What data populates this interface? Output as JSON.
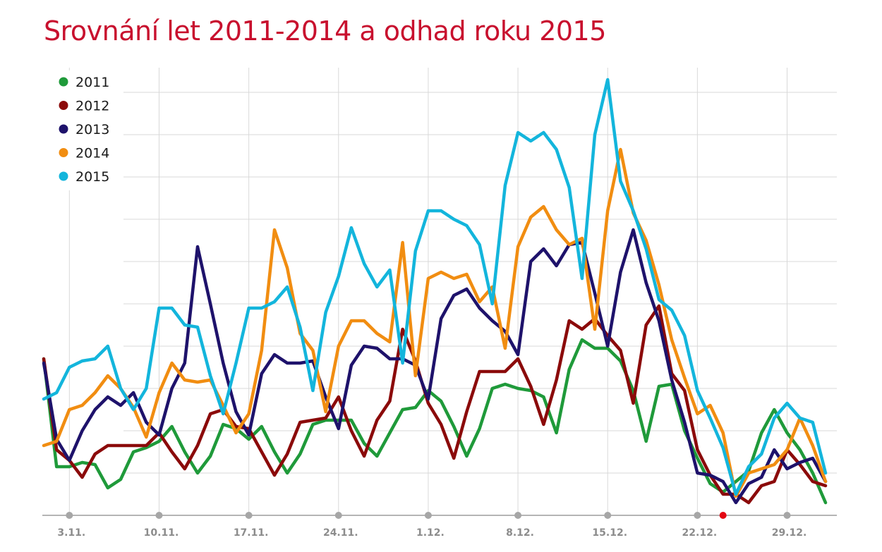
{
  "chart_data": {
    "type": "line",
    "title": "Srovnání let 2011-2014 a odhad roku 2015",
    "title_color": "#c8102e",
    "legend_position": "top-left",
    "grid": "horizontal-and-vertical",
    "day_range": [
      1,
      62
    ],
    "ylim": [
      0,
      10
    ],
    "ticks": [
      {
        "day": 3,
        "label": "3.11."
      },
      {
        "day": 10,
        "label": "10.11."
      },
      {
        "day": 17,
        "label": "17.11."
      },
      {
        "day": 24,
        "label": "24.11."
      },
      {
        "day": 31,
        "label": "1.12."
      },
      {
        "day": 38,
        "label": "8.12."
      },
      {
        "day": 45,
        "label": "15.12."
      },
      {
        "day": 52,
        "label": "22.12."
      },
      {
        "day": 59,
        "label": "29.12."
      }
    ],
    "highlight_day": 54,
    "highlight_color": "#e30613",
    "series": [
      {
        "name": "2011",
        "color": "#1f9a3a",
        "values": [
          3.7,
          1.15,
          1.15,
          1.25,
          1.2,
          0.65,
          0.85,
          1.5,
          1.6,
          1.75,
          2.1,
          1.5,
          1.0,
          1.4,
          2.15,
          2.05,
          1.8,
          2.1,
          1.5,
          1.0,
          1.45,
          2.15,
          2.25,
          2.25,
          2.25,
          1.7,
          1.4,
          1.95,
          2.5,
          2.55,
          2.95,
          2.7,
          2.1,
          1.4,
          2.05,
          3.0,
          3.1,
          3.0,
          2.95,
          2.8,
          1.95,
          3.45,
          4.15,
          3.95,
          3.95,
          3.65,
          2.95,
          1.75,
          3.05,
          3.1,
          2.0,
          1.35,
          0.75,
          0.55,
          0.8,
          1.05,
          1.95,
          2.5,
          1.95,
          1.55,
          1.0,
          0.3
        ]
      },
      {
        "name": "2012",
        "color": "#8b0a0a",
        "values": [
          3.7,
          1.55,
          1.3,
          0.9,
          1.45,
          1.65,
          1.65,
          1.65,
          1.65,
          1.95,
          1.5,
          1.1,
          1.65,
          2.4,
          2.5,
          2.1,
          2.05,
          1.5,
          0.95,
          1.45,
          2.2,
          2.25,
          2.3,
          2.8,
          2.0,
          1.4,
          2.25,
          2.7,
          4.4,
          3.65,
          2.65,
          2.15,
          1.35,
          2.45,
          3.4,
          3.4,
          3.4,
          3.7,
          3.05,
          2.15,
          3.2,
          4.6,
          4.4,
          4.65,
          4.25,
          3.9,
          2.65,
          4.5,
          4.95,
          3.35,
          2.95,
          1.55,
          0.95,
          0.5,
          0.5,
          0.3,
          0.7,
          0.8,
          1.55,
          1.2,
          0.8,
          0.7
        ]
      },
      {
        "name": "2013",
        "color": "#1e126b",
        "values": [
          3.6,
          1.8,
          1.3,
          2.0,
          2.5,
          2.8,
          2.6,
          2.9,
          2.2,
          1.9,
          3.0,
          3.6,
          6.35,
          5.0,
          3.6,
          2.45,
          1.9,
          3.35,
          3.8,
          3.6,
          3.6,
          3.65,
          2.8,
          2.05,
          3.55,
          4.0,
          3.95,
          3.7,
          3.7,
          3.55,
          2.75,
          4.65,
          5.2,
          5.35,
          4.9,
          4.6,
          4.35,
          3.8,
          6.0,
          6.3,
          5.9,
          6.4,
          6.45,
          5.25,
          4.0,
          5.75,
          6.75,
          5.5,
          4.6,
          3.2,
          2.2,
          1.0,
          0.95,
          0.8,
          0.3,
          0.75,
          0.9,
          1.55,
          1.1,
          1.25,
          1.35,
          0.8
        ]
      },
      {
        "name": "2014",
        "color": "#f18d11",
        "values": [
          1.65,
          1.75,
          2.5,
          2.6,
          2.9,
          3.3,
          3.0,
          2.55,
          1.85,
          2.9,
          3.6,
          3.2,
          3.15,
          3.2,
          2.6,
          1.95,
          2.4,
          3.9,
          6.75,
          5.85,
          4.3,
          3.9,
          2.45,
          4.0,
          4.6,
          4.6,
          4.3,
          4.1,
          6.45,
          3.3,
          5.6,
          5.75,
          5.6,
          5.7,
          5.05,
          5.4,
          3.95,
          6.35,
          7.05,
          7.3,
          6.75,
          6.4,
          6.55,
          4.4,
          7.2,
          8.65,
          7.15,
          6.5,
          5.45,
          4.15,
          3.25,
          2.4,
          2.6,
          1.95,
          0.45,
          1.0,
          1.1,
          1.2,
          1.55,
          2.3,
          1.65,
          0.8
        ]
      },
      {
        "name": "2015",
        "color": "#13b5dc",
        "values": [
          2.75,
          2.9,
          3.5,
          3.65,
          3.7,
          4.0,
          3.0,
          2.5,
          3.0,
          4.9,
          4.9,
          4.5,
          4.45,
          3.3,
          2.4,
          3.6,
          4.9,
          4.9,
          5.05,
          5.4,
          4.45,
          2.95,
          4.8,
          5.65,
          6.8,
          5.95,
          5.4,
          5.8,
          3.6,
          6.25,
          7.2,
          7.2,
          7.0,
          6.85,
          6.4,
          5.0,
          7.8,
          9.05,
          8.85,
          9.05,
          8.65,
          7.75,
          5.6,
          9.0,
          10.3,
          7.9,
          7.2,
          6.3,
          5.1,
          4.85,
          4.25,
          2.95,
          2.3,
          1.6,
          0.5,
          1.15,
          1.45,
          2.3,
          2.65,
          2.3,
          2.2,
          1.0
        ]
      }
    ]
  }
}
